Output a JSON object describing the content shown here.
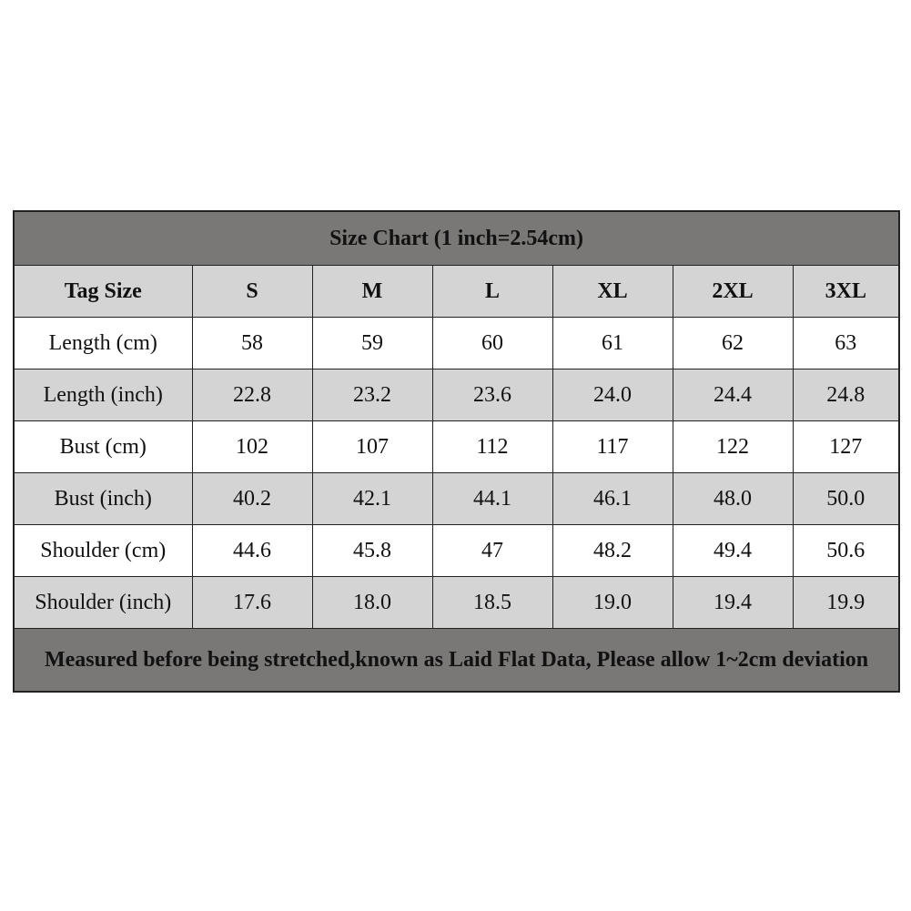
{
  "title": "Size Chart (1 inch=2.54cm)",
  "header": [
    "Tag Size",
    "S",
    "M",
    "L",
    "XL",
    "2XL",
    "3XL"
  ],
  "rows": [
    {
      "label": "Length (cm)",
      "values": [
        "58",
        "59",
        "60",
        "61",
        "62",
        "63"
      ]
    },
    {
      "label": "Length (inch)",
      "values": [
        "22.8",
        "23.2",
        "23.6",
        "24.0",
        "24.4",
        "24.8"
      ]
    },
    {
      "label": "Bust (cm)",
      "values": [
        "102",
        "107",
        "112",
        "117",
        "122",
        "127"
      ]
    },
    {
      "label": "Bust (inch)",
      "values": [
        "40.2",
        "42.1",
        "44.1",
        "46.1",
        "48.0",
        "50.0"
      ]
    },
    {
      "label": "Shoulder (cm)",
      "values": [
        "44.6",
        "45.8",
        "47",
        "48.2",
        "49.4",
        "50.6"
      ]
    },
    {
      "label": "Shoulder (inch)",
      "values": [
        "17.6",
        "18.0",
        "18.5",
        "19.0",
        "19.4",
        "19.9"
      ]
    }
  ],
  "footer": "Measured before being stretched,known as Laid Flat Data, Please allow 1~2cm deviation",
  "colors": {
    "dark_band": "#7a7877",
    "light_row": "#d4d4d4",
    "white_row": "#ffffff"
  }
}
